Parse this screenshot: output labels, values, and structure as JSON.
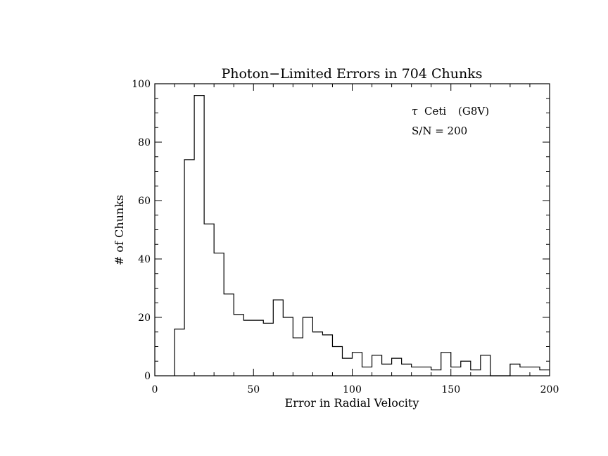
{
  "chart_data": {
    "type": "bar",
    "title": "Photon−Limited Errors in 704 Chunks",
    "xlabel": "Error in Radial Velocity",
    "ylabel": "# of Chunks",
    "xlim": [
      0,
      200
    ],
    "ylim": [
      0,
      100
    ],
    "x_ticks": [
      0,
      50,
      100,
      150,
      200
    ],
    "y_ticks": [
      0,
      20,
      40,
      60,
      80,
      100
    ],
    "x_tick_labels": [
      "0",
      "50",
      "100",
      "150",
      "200"
    ],
    "y_tick_labels": [
      "0",
      "20",
      "40",
      "60",
      "80",
      "100"
    ],
    "bin_width": 5,
    "bin_starts": [
      0,
      5,
      10,
      15,
      20,
      25,
      30,
      35,
      40,
      45,
      50,
      55,
      60,
      65,
      70,
      75,
      80,
      85,
      90,
      95,
      100,
      105,
      110,
      115,
      120,
      125,
      130,
      135,
      140,
      145,
      150,
      155,
      160,
      165,
      170,
      175,
      180,
      185,
      190,
      195
    ],
    "values": [
      0,
      0,
      16,
      74,
      96,
      52,
      42,
      28,
      21,
      19,
      19,
      18,
      26,
      20,
      13,
      20,
      15,
      14,
      10,
      6,
      8,
      3,
      7,
      4,
      6,
      4,
      3,
      3,
      2,
      8,
      3,
      5,
      2,
      7,
      0,
      0,
      4,
      3,
      3,
      2
    ],
    "annotations": {
      "star_symbol": "τ",
      "star_name": "Ceti",
      "spectral_type": "(G8V)",
      "snr": "S/N = 200"
    },
    "grid": false,
    "histogram_style": "step"
  }
}
